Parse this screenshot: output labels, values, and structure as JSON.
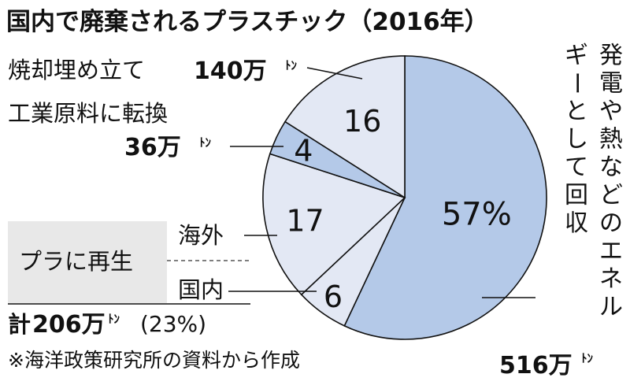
{
  "chart_data": {
    "type": "pie",
    "title": "国内で廃棄されるプラスチック（2016年）",
    "slices": [
      {
        "key": "energy",
        "value": 57,
        "label": "57%",
        "color": "#b4c9e8",
        "category": "発電や熱などのエネルギーとして回収",
        "amount": "516万"
      },
      {
        "key": "domestic",
        "value": 6,
        "label": "6",
        "color": "#e3e8f4",
        "category": "国内"
      },
      {
        "key": "overseas",
        "value": 17,
        "label": "17",
        "color": "#e3e8f4",
        "category": "海外"
      },
      {
        "key": "industrial",
        "value": 4,
        "label": "4",
        "color": "#b4c9e8",
        "category": "工業原料に転換",
        "amount": "36万"
      },
      {
        "key": "landfill",
        "value": 16,
        "label": "16",
        "color": "#e3e8f4",
        "category": "焼却埋め立て",
        "amount": "140万"
      }
    ],
    "unit": "ﾄﾝ",
    "recycle_group": {
      "label": "プラに再生",
      "total_prefix": "計",
      "total_amount": "206万",
      "total_percent": "(23%)"
    },
    "source_note": "※海洋政策研究所の資料から作成"
  }
}
